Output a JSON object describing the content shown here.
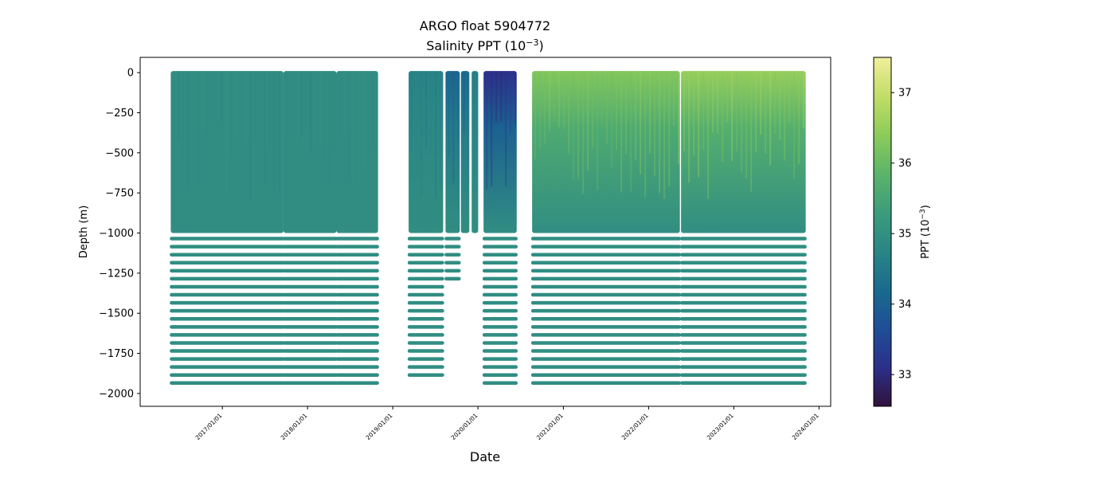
{
  "chart_data": {
    "type": "scatter",
    "title": "ARGO float 5904772",
    "subtitle": "Salinity PPT (10",
    "subtitle_exp": "−3",
    "subtitle_close": ")",
    "xlabel": "Date",
    "ylabel": "Depth (m)",
    "xlim": [
      "2016-01-15",
      "2024-02-20"
    ],
    "ylim": [
      -2080,
      95
    ],
    "x_ticks": [
      {
        "date": "2017-01-01",
        "label": "2017/01/01"
      },
      {
        "date": "2018-01-01",
        "label": "2018/01/01"
      },
      {
        "date": "2019-01-01",
        "label": "2019/01/01"
      },
      {
        "date": "2020-01-01",
        "label": "2020/01/01"
      },
      {
        "date": "2021-01-01",
        "label": "2021/01/01"
      },
      {
        "date": "2022-01-01",
        "label": "2022/01/01"
      },
      {
        "date": "2023-01-01",
        "label": "2023/01/01"
      },
      {
        "date": "2024-01-01",
        "label": "2024/01/01"
      }
    ],
    "y_ticks": [
      0,
      -250,
      -500,
      -750,
      -1000,
      -1250,
      -1500,
      -1750,
      -2000
    ],
    "y_tick_labels": [
      "0",
      "−250",
      "−500",
      "−750",
      "−1000",
      "−1250",
      "−1500",
      "−1750",
      "−2000"
    ],
    "colorbar": {
      "label": "PPT (10",
      "label_exp": "−3",
      "label_close": ")",
      "range": [
        32.55,
        37.5
      ],
      "ticks": [
        33,
        34,
        35,
        36,
        37
      ],
      "colormap": [
        "#30123b",
        "#2c2f8a",
        "#1f4e96",
        "#1a6a8e",
        "#2a8585",
        "#3c9c7c",
        "#5cb46a",
        "#8ccb5a",
        "#c2dd67",
        "#f1ee9d"
      ]
    },
    "profile_segments": [
      {
        "start": "2016-05-25",
        "end": "2017-09-20",
        "surface_salinity": 34.95,
        "deep_salinity": 34.95,
        "bottom_depth": -1970
      },
      {
        "start": "2017-09-20",
        "end": "2018-05-05",
        "surface_salinity": 34.95,
        "deep_salinity": 34.95,
        "bottom_depth": -1970
      },
      {
        "start": "2018-05-05",
        "end": "2018-10-30",
        "surface_salinity": 34.95,
        "deep_salinity": 34.95,
        "bottom_depth": -1970
      },
      {
        "start": "2019-03-10",
        "end": "2019-08-05",
        "surface_salinity": 34.7,
        "deep_salinity": 34.95,
        "bottom_depth": -1920
      },
      {
        "start": "2019-08-15",
        "end": "2019-10-15",
        "surface_salinity": 34.1,
        "deep_salinity": 34.95,
        "bottom_depth": -1330
      },
      {
        "start": "2019-10-20",
        "end": "2019-11-25",
        "surface_salinity": 34.2,
        "deep_salinity": 34.95,
        "bottom_depth": -1000
      },
      {
        "start": "2019-12-05",
        "end": "2020-01-02",
        "surface_salinity": 34.6,
        "deep_salinity": 34.95,
        "bottom_depth": -980
      },
      {
        "start": "2020-01-25",
        "end": "2020-06-15",
        "surface_salinity": 33.1,
        "deep_salinity": 34.95,
        "bottom_depth": -1970
      },
      {
        "start": "2020-08-20",
        "end": "2022-05-15",
        "surface_salinity": 36.3,
        "deep_salinity": 34.95,
        "bottom_depth": -1970
      },
      {
        "start": "2022-05-20",
        "end": "2023-11-05",
        "surface_salinity": 36.5,
        "deep_salinity": 34.95,
        "bottom_depth": -1970
      }
    ]
  }
}
